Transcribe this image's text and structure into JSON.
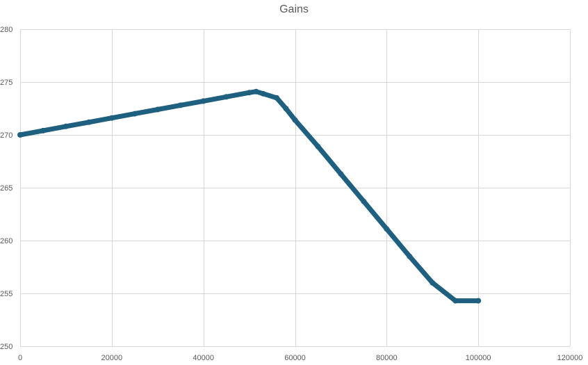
{
  "chart_data": {
    "type": "scatter",
    "title": "Gains",
    "xlabel": "",
    "ylabel": "",
    "xlim": [
      0,
      120000
    ],
    "ylim": [
      250,
      280
    ],
    "x_ticks": [
      0,
      20000,
      40000,
      60000,
      80000,
      100000,
      120000
    ],
    "y_ticks": [
      250,
      255,
      260,
      265,
      270,
      275,
      280
    ],
    "x_tick_labels": [
      "0",
      "20000",
      "40000",
      "60000",
      "80000",
      "100000",
      "120000"
    ],
    "y_tick_labels": [
      "250",
      "255",
      "260",
      "265",
      "270",
      "275",
      "280"
    ],
    "grid": true,
    "legend": "none",
    "marker_color": "#1f5f7f",
    "series": [
      {
        "x": [
          0,
          5000,
          10000,
          15000,
          20000,
          25000,
          30000,
          35000,
          40000,
          45000,
          50000,
          51500,
          53000,
          56000,
          58000,
          60000,
          65000,
          70000,
          75000,
          80000,
          85000,
          90000,
          95000,
          100000
        ],
        "y": [
          270.0,
          270.4,
          270.8,
          271.2,
          271.6,
          272.0,
          272.4,
          272.8,
          273.2,
          273.6,
          274.0,
          274.1,
          273.9,
          273.5,
          272.5,
          271.4,
          268.9,
          266.3,
          263.7,
          261.1,
          258.5,
          256.0,
          254.3,
          254.3
        ]
      }
    ]
  }
}
